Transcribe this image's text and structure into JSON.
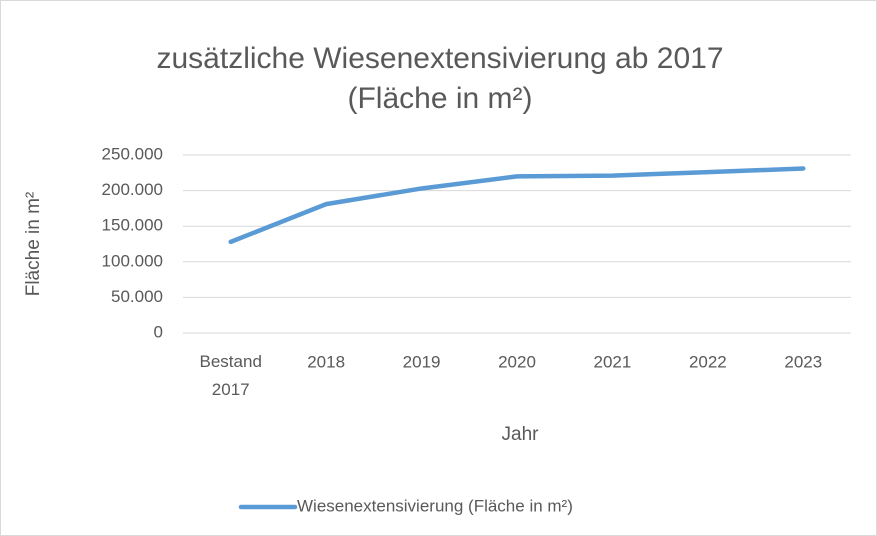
{
  "chart_data": {
    "type": "line",
    "title": [
      "zusätzliche Wiesenextensivierung ab 2017",
      "(Fläche in m²)"
    ],
    "x_label": "Jahr",
    "y_label": "Fläche in m²",
    "categories": [
      "Bestand 2017",
      "2018",
      "2019",
      "2020",
      "2021",
      "2022",
      "2023"
    ],
    "series": [
      {
        "name": "Wiesenextensivierung (Fläche in m²)",
        "color": "#5b9bd5",
        "values": [
          128000,
          181000,
          203000,
          220000,
          221000,
          226000,
          231000
        ]
      }
    ],
    "ylim": [
      0,
      250000
    ],
    "yticks": [
      0,
      {
        "value": 50000,
        "label": "50.000"
      },
      {
        "value": 100000,
        "label": "100.000"
      },
      {
        "value": 150000,
        "label": "150.000"
      },
      {
        "value": 200000,
        "label": "200.000"
      },
      {
        "value": 250000,
        "label": "250.000"
      }
    ],
    "grid": true,
    "legend": "bottom"
  }
}
